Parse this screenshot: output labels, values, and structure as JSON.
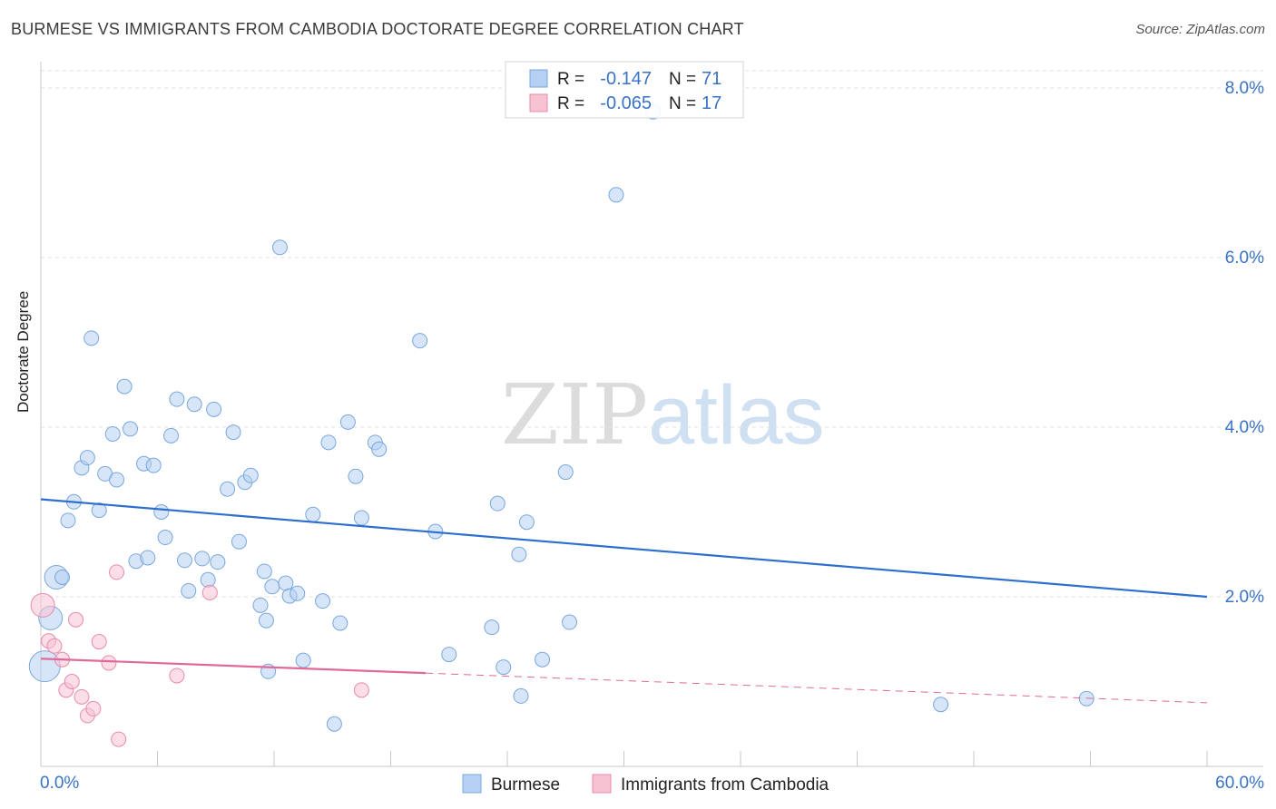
{
  "title": "BURMESE VS IMMIGRANTS FROM CAMBODIA DOCTORATE DEGREE CORRELATION CHART",
  "source": "Source: ZipAtlas.com",
  "watermark": {
    "zip": "ZIP",
    "atlas": "atlas"
  },
  "colors": {
    "blue_fill": "#b5d0f2",
    "blue_stroke": "#7aa7dc",
    "blue_line": "#2e6fcd",
    "pink_fill": "#f7c3d3",
    "pink_stroke": "#e98aaa",
    "pink_line": "#e06a97",
    "axis_text": "#3a73c6",
    "grid": "#e0e0e0"
  },
  "legend_top": {
    "rows": [
      {
        "r_label": "R =",
        "r_value": "-0.147",
        "n_label": "N =",
        "n_value": "71",
        "series": "blue"
      },
      {
        "r_label": "R =",
        "r_value": "-0.065",
        "n_label": "N =",
        "n_value": "17",
        "series": "pink"
      }
    ]
  },
  "legend_bottom": [
    {
      "label": "Burmese",
      "series": "blue"
    },
    {
      "label": "Immigrants from Cambodia",
      "series": "pink"
    }
  ],
  "chart_data": {
    "type": "scatter",
    "title": "BURMESE VS IMMIGRANTS FROM CAMBODIA DOCTORATE DEGREE CORRELATION CHART",
    "xlabel": "",
    "ylabel": "Doctorate Degree",
    "xlim": [
      0,
      60
    ],
    "ylim": [
      0,
      8.3
    ],
    "x_tick_labels": [
      "0.0%",
      "60.0%"
    ],
    "y_ticks": [
      2,
      4,
      6,
      8
    ],
    "y_tick_labels": [
      "2.0%",
      "4.0%",
      "6.0%",
      "8.0%"
    ],
    "grid": true,
    "series": [
      {
        "name": "Burmese",
        "color": "blue",
        "trendline": {
          "x0": 0,
          "y0": 3.15,
          "x1": 60,
          "y1": 2.0
        },
        "points": [
          {
            "x": 0.2,
            "y": 1.18,
            "size": "xl"
          },
          {
            "x": 0.5,
            "y": 1.75,
            "size": "lg"
          },
          {
            "x": 0.8,
            "y": 2.23,
            "size": "lg"
          },
          {
            "x": 1.1,
            "y": 2.23
          },
          {
            "x": 1.4,
            "y": 2.9
          },
          {
            "x": 1.7,
            "y": 3.12
          },
          {
            "x": 2.1,
            "y": 3.52
          },
          {
            "x": 2.4,
            "y": 3.64
          },
          {
            "x": 2.6,
            "y": 5.05
          },
          {
            "x": 3.0,
            "y": 3.02
          },
          {
            "x": 3.3,
            "y": 3.45
          },
          {
            "x": 3.7,
            "y": 3.92
          },
          {
            "x": 3.9,
            "y": 3.38
          },
          {
            "x": 4.3,
            "y": 4.48
          },
          {
            "x": 4.6,
            "y": 3.98
          },
          {
            "x": 4.9,
            "y": 2.42
          },
          {
            "x": 5.3,
            "y": 3.57
          },
          {
            "x": 5.5,
            "y": 2.46
          },
          {
            "x": 5.8,
            "y": 3.55
          },
          {
            "x": 6.2,
            "y": 3.0
          },
          {
            "x": 6.4,
            "y": 2.7
          },
          {
            "x": 6.7,
            "y": 3.9
          },
          {
            "x": 7.0,
            "y": 4.33
          },
          {
            "x": 7.4,
            "y": 2.43
          },
          {
            "x": 7.6,
            "y": 2.07
          },
          {
            "x": 7.9,
            "y": 4.27
          },
          {
            "x": 8.3,
            "y": 2.45
          },
          {
            "x": 8.6,
            "y": 2.2
          },
          {
            "x": 8.9,
            "y": 4.21
          },
          {
            "x": 9.1,
            "y": 2.41
          },
          {
            "x": 9.6,
            "y": 3.27
          },
          {
            "x": 9.9,
            "y": 3.94
          },
          {
            "x": 10.2,
            "y": 2.65
          },
          {
            "x": 10.5,
            "y": 3.35
          },
          {
            "x": 10.8,
            "y": 3.43
          },
          {
            "x": 11.3,
            "y": 1.9
          },
          {
            "x": 11.5,
            "y": 2.3
          },
          {
            "x": 11.6,
            "y": 1.72
          },
          {
            "x": 11.7,
            "y": 1.12
          },
          {
            "x": 11.9,
            "y": 2.12
          },
          {
            "x": 12.3,
            "y": 6.12
          },
          {
            "x": 12.6,
            "y": 2.16
          },
          {
            "x": 12.8,
            "y": 2.01
          },
          {
            "x": 13.2,
            "y": 2.04
          },
          {
            "x": 13.5,
            "y": 1.25
          },
          {
            "x": 14.0,
            "y": 2.97
          },
          {
            "x": 14.5,
            "y": 1.95
          },
          {
            "x": 14.8,
            "y": 3.82
          },
          {
            "x": 15.1,
            "y": 0.5
          },
          {
            "x": 15.4,
            "y": 1.69
          },
          {
            "x": 15.8,
            "y": 4.06
          },
          {
            "x": 16.2,
            "y": 3.42
          },
          {
            "x": 16.5,
            "y": 2.93
          },
          {
            "x": 17.2,
            "y": 3.82
          },
          {
            "x": 17.4,
            "y": 3.74
          },
          {
            "x": 19.5,
            "y": 5.02
          },
          {
            "x": 20.3,
            "y": 2.77
          },
          {
            "x": 21.0,
            "y": 1.32
          },
          {
            "x": 23.2,
            "y": 1.64
          },
          {
            "x": 23.5,
            "y": 3.1
          },
          {
            "x": 23.8,
            "y": 1.17
          },
          {
            "x": 24.6,
            "y": 2.5
          },
          {
            "x": 24.7,
            "y": 0.83
          },
          {
            "x": 25.0,
            "y": 2.88
          },
          {
            "x": 25.8,
            "y": 1.26
          },
          {
            "x": 27.0,
            "y": 3.47
          },
          {
            "x": 27.2,
            "y": 1.7
          },
          {
            "x": 29.6,
            "y": 6.74
          },
          {
            "x": 31.5,
            "y": 7.72
          },
          {
            "x": 46.3,
            "y": 0.73
          },
          {
            "x": 53.8,
            "y": 0.8
          }
        ]
      },
      {
        "name": "Immigrants from Cambodia",
        "color": "pink",
        "trendline": {
          "x0": 0,
          "y0": 1.27,
          "x1": 19.8,
          "y1": 1.1,
          "dash_to_x": 60,
          "dash_to_y": 0.75
        },
        "points": [
          {
            "x": 0.1,
            "y": 1.9,
            "size": "lg"
          },
          {
            "x": 0.4,
            "y": 1.48
          },
          {
            "x": 0.7,
            "y": 1.42
          },
          {
            "x": 1.1,
            "y": 1.26
          },
          {
            "x": 1.3,
            "y": 0.9
          },
          {
            "x": 1.6,
            "y": 1.0
          },
          {
            "x": 1.8,
            "y": 1.73
          },
          {
            "x": 2.1,
            "y": 0.82
          },
          {
            "x": 2.4,
            "y": 0.6
          },
          {
            "x": 2.7,
            "y": 0.68
          },
          {
            "x": 3.0,
            "y": 1.47
          },
          {
            "x": 3.5,
            "y": 1.22
          },
          {
            "x": 3.9,
            "y": 2.29
          },
          {
            "x": 4.0,
            "y": 0.32
          },
          {
            "x": 7.0,
            "y": 1.07
          },
          {
            "x": 8.7,
            "y": 2.05
          },
          {
            "x": 16.5,
            "y": 0.9
          }
        ]
      }
    ]
  }
}
